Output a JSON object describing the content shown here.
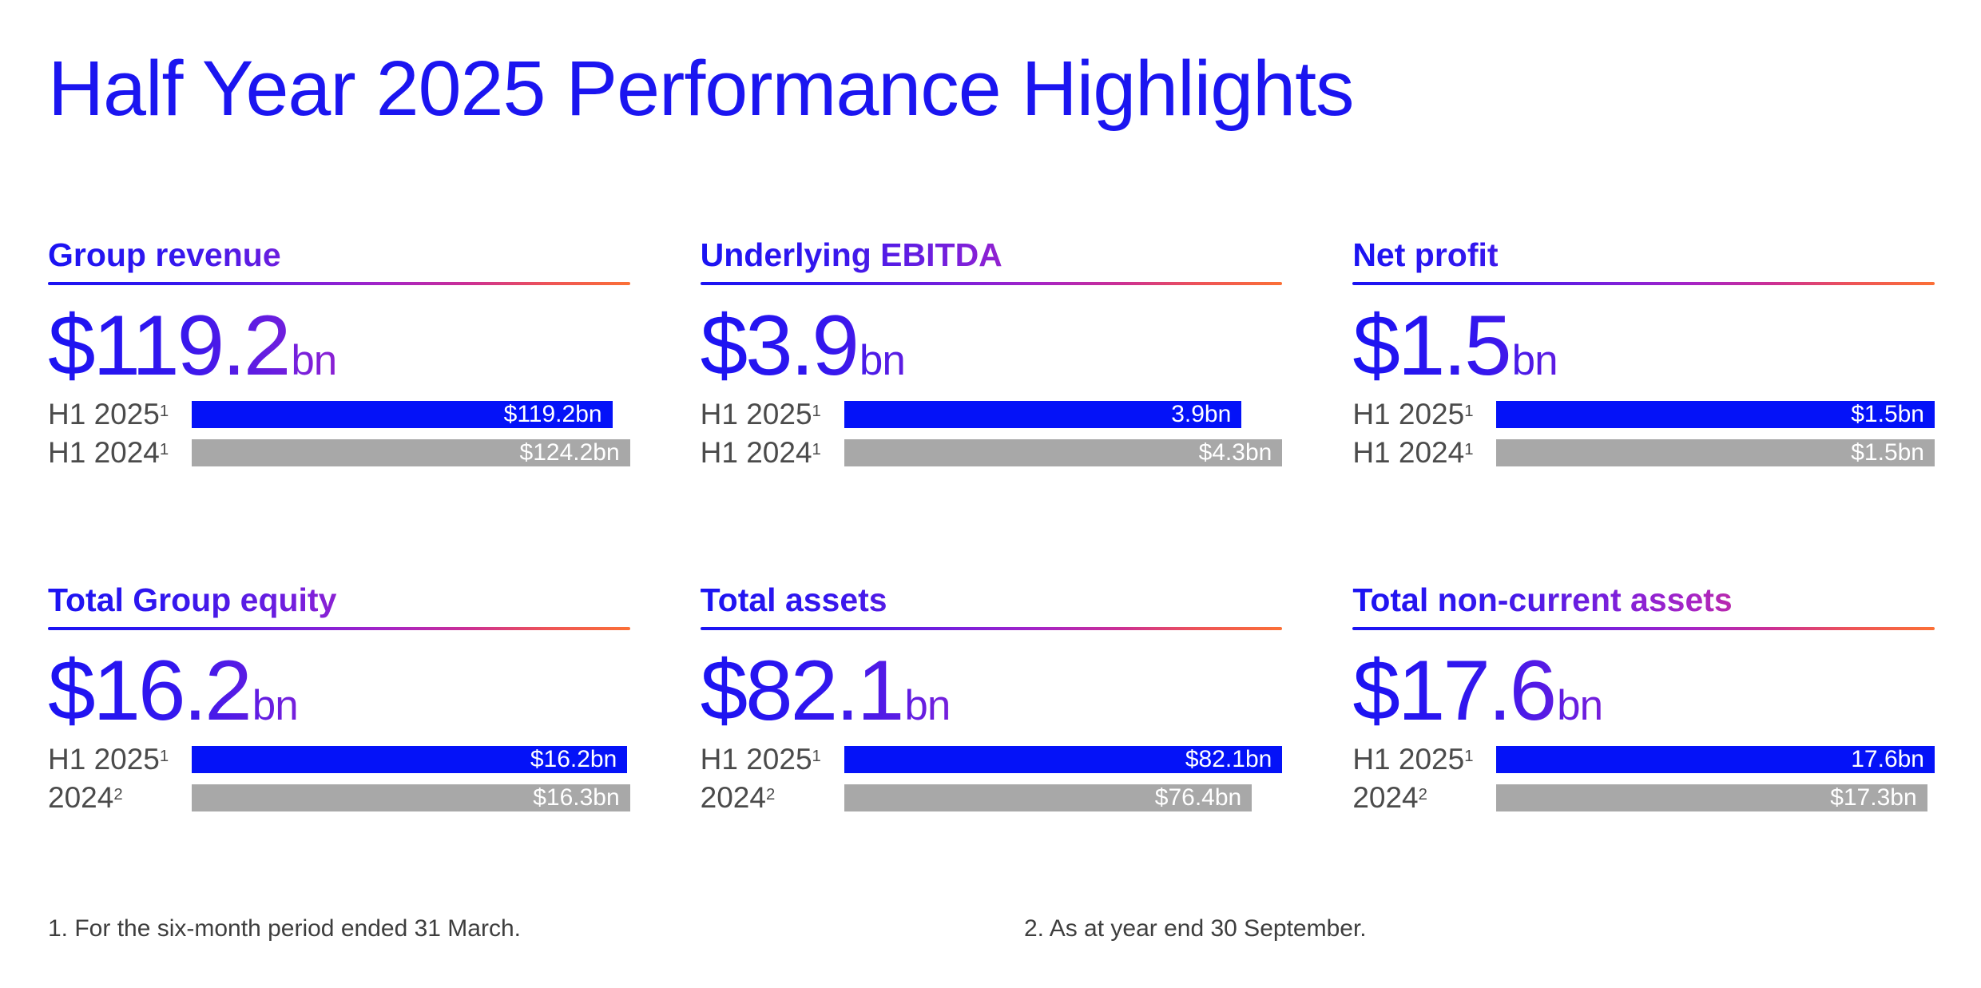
{
  "page_title": "Half Year 2025 Performance Highlights",
  "colors": {
    "title_blue": "#1b15f0",
    "bar_blue": "#0412f8",
    "bar_gray": "#a8a8a8",
    "row_label_gray": "#4b4b4b",
    "footnote_gray": "#3e3e3e",
    "brand_gradient": [
      "#1a13f2",
      "#7d20da",
      "#a524c6",
      "#cb2f95",
      "#fb7036"
    ]
  },
  "cards": [
    {
      "title": "Group revenue",
      "headline_value": "$119.2",
      "headline_unit": "bn",
      "rows": [
        {
          "label": "H1 2025",
          "superscript": "1",
          "value": 119.2,
          "value_label": "$119.2bn",
          "color": "blue"
        },
        {
          "label": "H1 2024",
          "superscript": "1",
          "value": 124.2,
          "value_label": "$124.2bn",
          "color": "gray"
        }
      ]
    },
    {
      "title": "Underlying EBITDA",
      "headline_value": "$3.9",
      "headline_unit": "bn",
      "rows": [
        {
          "label": "H1 2025",
          "superscript": "1",
          "value": 3.9,
          "value_label": "3.9bn",
          "color": "blue"
        },
        {
          "label": "H1 2024",
          "superscript": "1",
          "value": 4.3,
          "value_label": "$4.3bn",
          "color": "gray"
        }
      ]
    },
    {
      "title": "Net profit",
      "headline_value": "$1.5",
      "headline_unit": "bn",
      "rows": [
        {
          "label": "H1 2025",
          "superscript": "1",
          "value": 1.5,
          "value_label": "$1.5bn",
          "color": "blue"
        },
        {
          "label": "H1 2024",
          "superscript": "1",
          "value": 1.5,
          "value_label": "$1.5bn",
          "color": "gray"
        }
      ]
    },
    {
      "title": "Total Group equity",
      "headline_value": "$16.2",
      "headline_unit": "bn",
      "rows": [
        {
          "label": "H1 2025",
          "superscript": "1",
          "value": 16.2,
          "value_label": "$16.2bn",
          "color": "blue"
        },
        {
          "label": "2024",
          "superscript": "2",
          "value": 16.3,
          "value_label": "$16.3bn",
          "color": "gray"
        }
      ]
    },
    {
      "title": "Total assets",
      "headline_value": "$82.1",
      "headline_unit": "bn",
      "rows": [
        {
          "label": "H1 2025",
          "superscript": "1",
          "value": 82.1,
          "value_label": "$82.1bn",
          "color": "blue"
        },
        {
          "label": "2024",
          "superscript": "2",
          "value": 76.4,
          "value_label": "$76.4bn",
          "color": "gray"
        }
      ]
    },
    {
      "title": "Total non-current assets",
      "headline_value": "$17.6",
      "headline_unit": "bn",
      "rows": [
        {
          "label": "H1 2025",
          "superscript": "1",
          "value": 17.6,
          "value_label": "17.6bn",
          "color": "blue"
        },
        {
          "label": "2024",
          "superscript": "2",
          "value": 17.3,
          "value_label": "$17.3bn",
          "color": "gray"
        }
      ]
    }
  ],
  "footnotes": [
    "1. For the six-month period ended 31 March.",
    "2. As at year end 30 September."
  ],
  "chart_data": [
    {
      "type": "bar",
      "orientation": "horizontal",
      "title": "Group revenue",
      "headline": "$119.2bn",
      "categories": [
        "H1 2025",
        "H1 2024"
      ],
      "values": [
        119.2,
        124.2
      ],
      "value_labels": [
        "$119.2bn",
        "$124.2bn"
      ],
      "unit": "USD bn",
      "xlim": [
        0,
        124.2
      ],
      "bar_colors": [
        "#0412f8",
        "#a8a8a8"
      ],
      "grid": false,
      "legend": false
    },
    {
      "type": "bar",
      "orientation": "horizontal",
      "title": "Underlying EBITDA",
      "headline": "$3.9bn",
      "categories": [
        "H1 2025",
        "H1 2024"
      ],
      "values": [
        3.9,
        4.3
      ],
      "value_labels": [
        "3.9bn",
        "$4.3bn"
      ],
      "unit": "USD bn",
      "xlim": [
        0,
        4.3
      ],
      "bar_colors": [
        "#0412f8",
        "#a8a8a8"
      ],
      "grid": false,
      "legend": false
    },
    {
      "type": "bar",
      "orientation": "horizontal",
      "title": "Net profit",
      "headline": "$1.5bn",
      "categories": [
        "H1 2025",
        "H1 2024"
      ],
      "values": [
        1.5,
        1.5
      ],
      "value_labels": [
        "$1.5bn",
        "$1.5bn"
      ],
      "unit": "USD bn",
      "xlim": [
        0,
        1.5
      ],
      "bar_colors": [
        "#0412f8",
        "#a8a8a8"
      ],
      "grid": false,
      "legend": false
    },
    {
      "type": "bar",
      "orientation": "horizontal",
      "title": "Total Group equity",
      "headline": "$16.2bn",
      "categories": [
        "H1 2025",
        "2024"
      ],
      "values": [
        16.2,
        16.3
      ],
      "value_labels": [
        "$16.2bn",
        "$16.3bn"
      ],
      "unit": "USD bn",
      "xlim": [
        0,
        16.3
      ],
      "bar_colors": [
        "#0412f8",
        "#a8a8a8"
      ],
      "grid": false,
      "legend": false
    },
    {
      "type": "bar",
      "orientation": "horizontal",
      "title": "Total assets",
      "headline": "$82.1bn",
      "categories": [
        "H1 2025",
        "2024"
      ],
      "values": [
        82.1,
        76.4
      ],
      "value_labels": [
        "$82.1bn",
        "$76.4bn"
      ],
      "unit": "USD bn",
      "xlim": [
        0,
        82.1
      ],
      "bar_colors": [
        "#0412f8",
        "#a8a8a8"
      ],
      "grid": false,
      "legend": false
    },
    {
      "type": "bar",
      "orientation": "horizontal",
      "title": "Total non-current assets",
      "headline": "$17.6bn",
      "categories": [
        "H1 2025",
        "2024"
      ],
      "values": [
        17.6,
        17.3
      ],
      "value_labels": [
        "17.6bn",
        "$17.3bn"
      ],
      "unit": "USD bn",
      "xlim": [
        0,
        17.6
      ],
      "bar_colors": [
        "#0412f8",
        "#a8a8a8"
      ],
      "grid": false,
      "legend": false
    }
  ]
}
